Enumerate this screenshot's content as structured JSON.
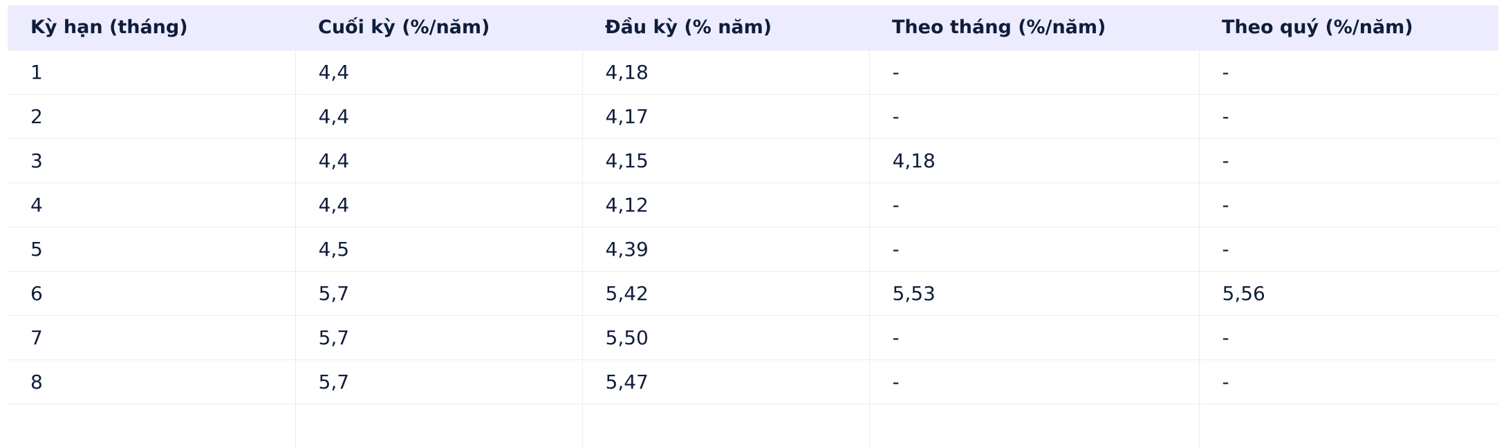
{
  "table": {
    "headers": [
      "Kỳ hạn (tháng)",
      "Cuối kỳ (%/năm)",
      "Đầu kỳ (% năm)",
      "Theo tháng (%/năm)",
      "Theo quý (%/năm)"
    ],
    "rows": [
      [
        "1",
        "4,4",
        "4,18",
        "-",
        "-"
      ],
      [
        "2",
        "4,4",
        "4,17",
        "-",
        "-"
      ],
      [
        "3",
        "4,4",
        "4,15",
        "4,18",
        "-"
      ],
      [
        "4",
        "4,4",
        "4,12",
        "-",
        "-"
      ],
      [
        "5",
        "4,5",
        "4,39",
        "-",
        "-"
      ],
      [
        "6",
        "5,7",
        "5,42",
        "5,53",
        "5,56"
      ],
      [
        "7",
        "5,7",
        "5,50",
        "-",
        "-"
      ],
      [
        "8",
        "5,7",
        "5,47",
        "-",
        "-"
      ]
    ]
  }
}
